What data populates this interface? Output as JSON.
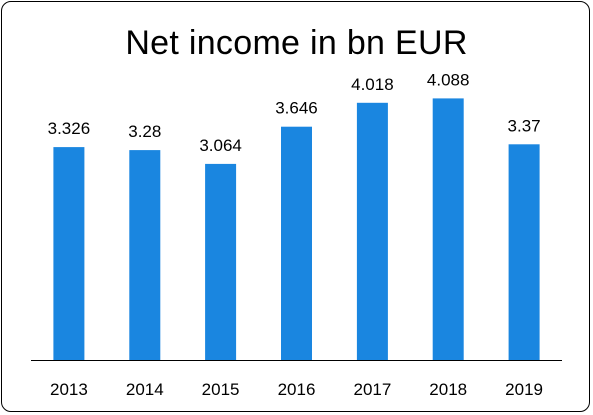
{
  "chart_data": {
    "type": "bar",
    "title": "Net income in bn EUR",
    "categories": [
      "2013",
      "2014",
      "2015",
      "2016",
      "2017",
      "2018",
      "2019"
    ],
    "values": [
      3.326,
      3.28,
      3.064,
      3.646,
      4.018,
      4.088,
      3.37
    ],
    "value_labels": [
      "3.326",
      "3.28",
      "3.064",
      "3.646",
      "4.018",
      "4.088",
      "3.37"
    ],
    "xlabel": "",
    "ylabel": "",
    "ylim": [
      0,
      4.5
    ],
    "grid": false,
    "legend": "none",
    "bar_color": "#1a86e0"
  }
}
